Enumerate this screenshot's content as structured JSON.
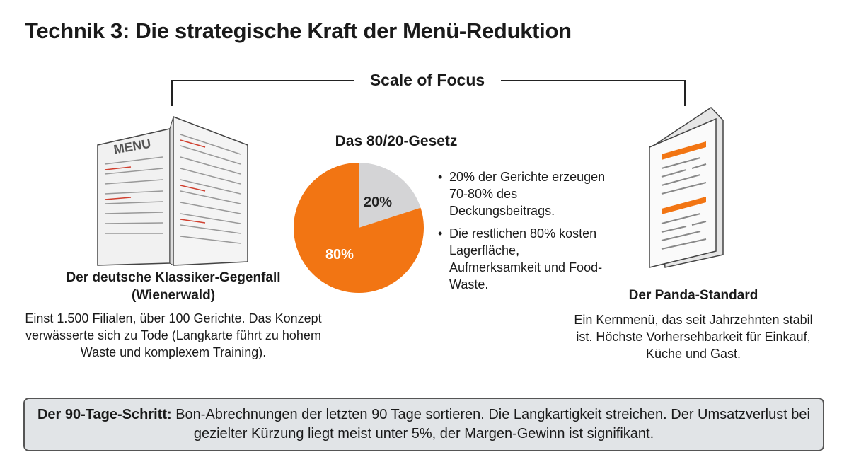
{
  "title": "Technik 3: Die strategische Kraft der Menü-Reduktion",
  "scale_label": "Scale of Focus",
  "menu_label": "MENU",
  "left": {
    "heading": "Der deutsche Klassiker-Gegenfall (Wienerwald)",
    "body": "Einst 1.500 Filialen, über 100 Gerichte. Das Konzept verwässerte sich zu Tode (Langkarte führt zu hohem Waste und komplexem Training)."
  },
  "chart_data": {
    "type": "pie",
    "title": "Das 80/20-Gesetz",
    "values": [
      20,
      80
    ],
    "value_labels": [
      "20%",
      "80%"
    ],
    "colors": [
      "#d4d4d6",
      "#f27513"
    ]
  },
  "bullets": [
    "20% der Gerichte erzeugen 70-80% des Deckungsbeitrags.",
    "Die restlichen 80% kosten Lagerfläche, Aufmerksamkeit und Food-Waste."
  ],
  "right": {
    "heading": "Der Panda-Standard",
    "body": "Ein Kernmenü, das seit Jahrzehnten stabil ist. Höchste Vorhersehbarkeit für Einkauf, Küche und Gast."
  },
  "footer": {
    "lead": "Der 90-Tage-Schritt:",
    "text": "Bon-Abrechnungen der letzten 90 Tage sortieren. Die Langkartigkeit streichen. Der Umsatzverlust bei gezielter Kürzung liegt meist unter 5%, der Margen-Gewinn ist signifikant."
  }
}
